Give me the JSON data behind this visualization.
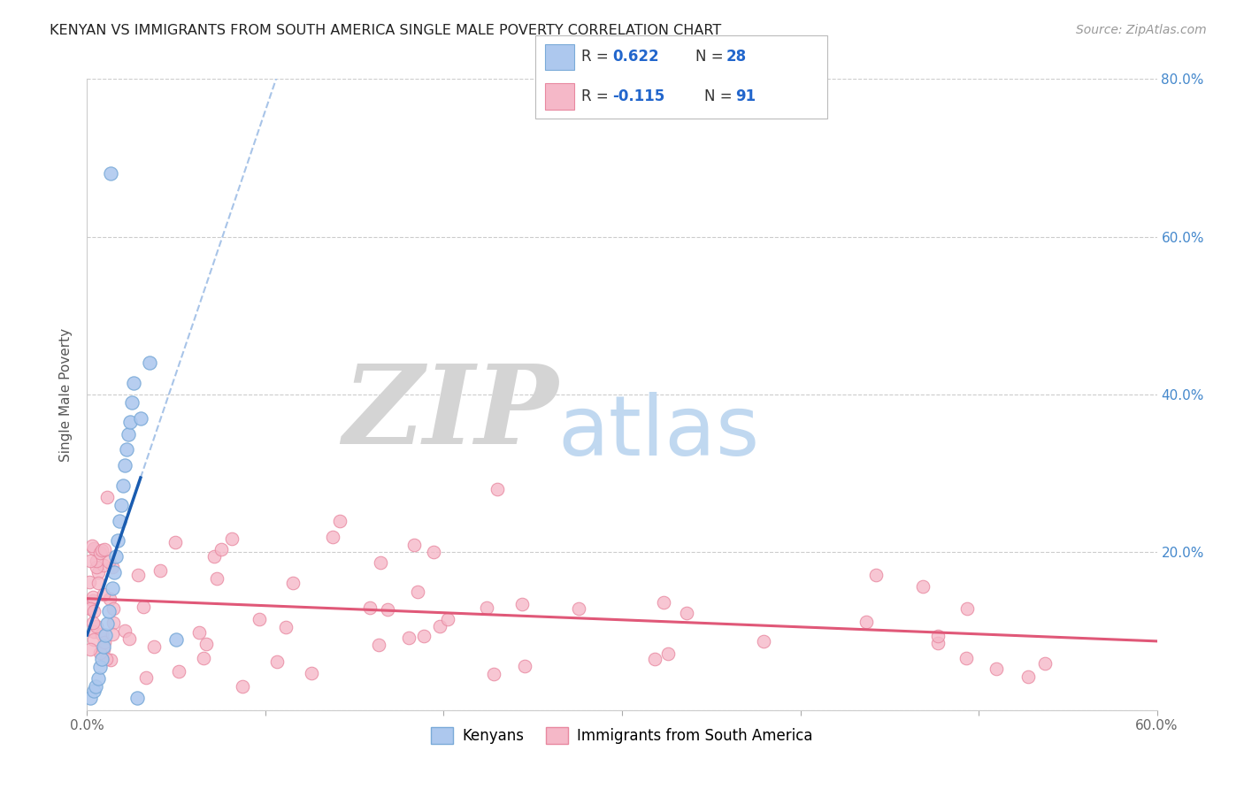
{
  "title": "KENYAN VS IMMIGRANTS FROM SOUTH AMERICA SINGLE MALE POVERTY CORRELATION CHART",
  "source": "Source: ZipAtlas.com",
  "ylabel": "Single Male Poverty",
  "xlim": [
    0.0,
    0.6
  ],
  "ylim": [
    0.0,
    0.8
  ],
  "kenyan_color": "#adc8ee",
  "kenyan_edge": "#7aaad8",
  "sa_color": "#f5b8c8",
  "sa_edge": "#e888a0",
  "kenyan_line_color": "#1a5cb0",
  "kenyan_dash_color": "#a8c4e8",
  "sa_line_color": "#e05878",
  "watermark_ZIP_color": "#d4d4d4",
  "watermark_atlas_color": "#c0d8f0",
  "legend_kenyan_R": "R = ",
  "legend_kenyan_Rval": "0.622",
  "legend_kenyan_N": "N = ",
  "legend_kenyan_Nval": "28",
  "legend_sa_R": "R = ",
  "legend_sa_Rval": "-0.115",
  "legend_sa_N": "N = ",
  "legend_sa_Nval": "91",
  "legend_val_color": "#2266cc",
  "legend_label_color": "#333333"
}
